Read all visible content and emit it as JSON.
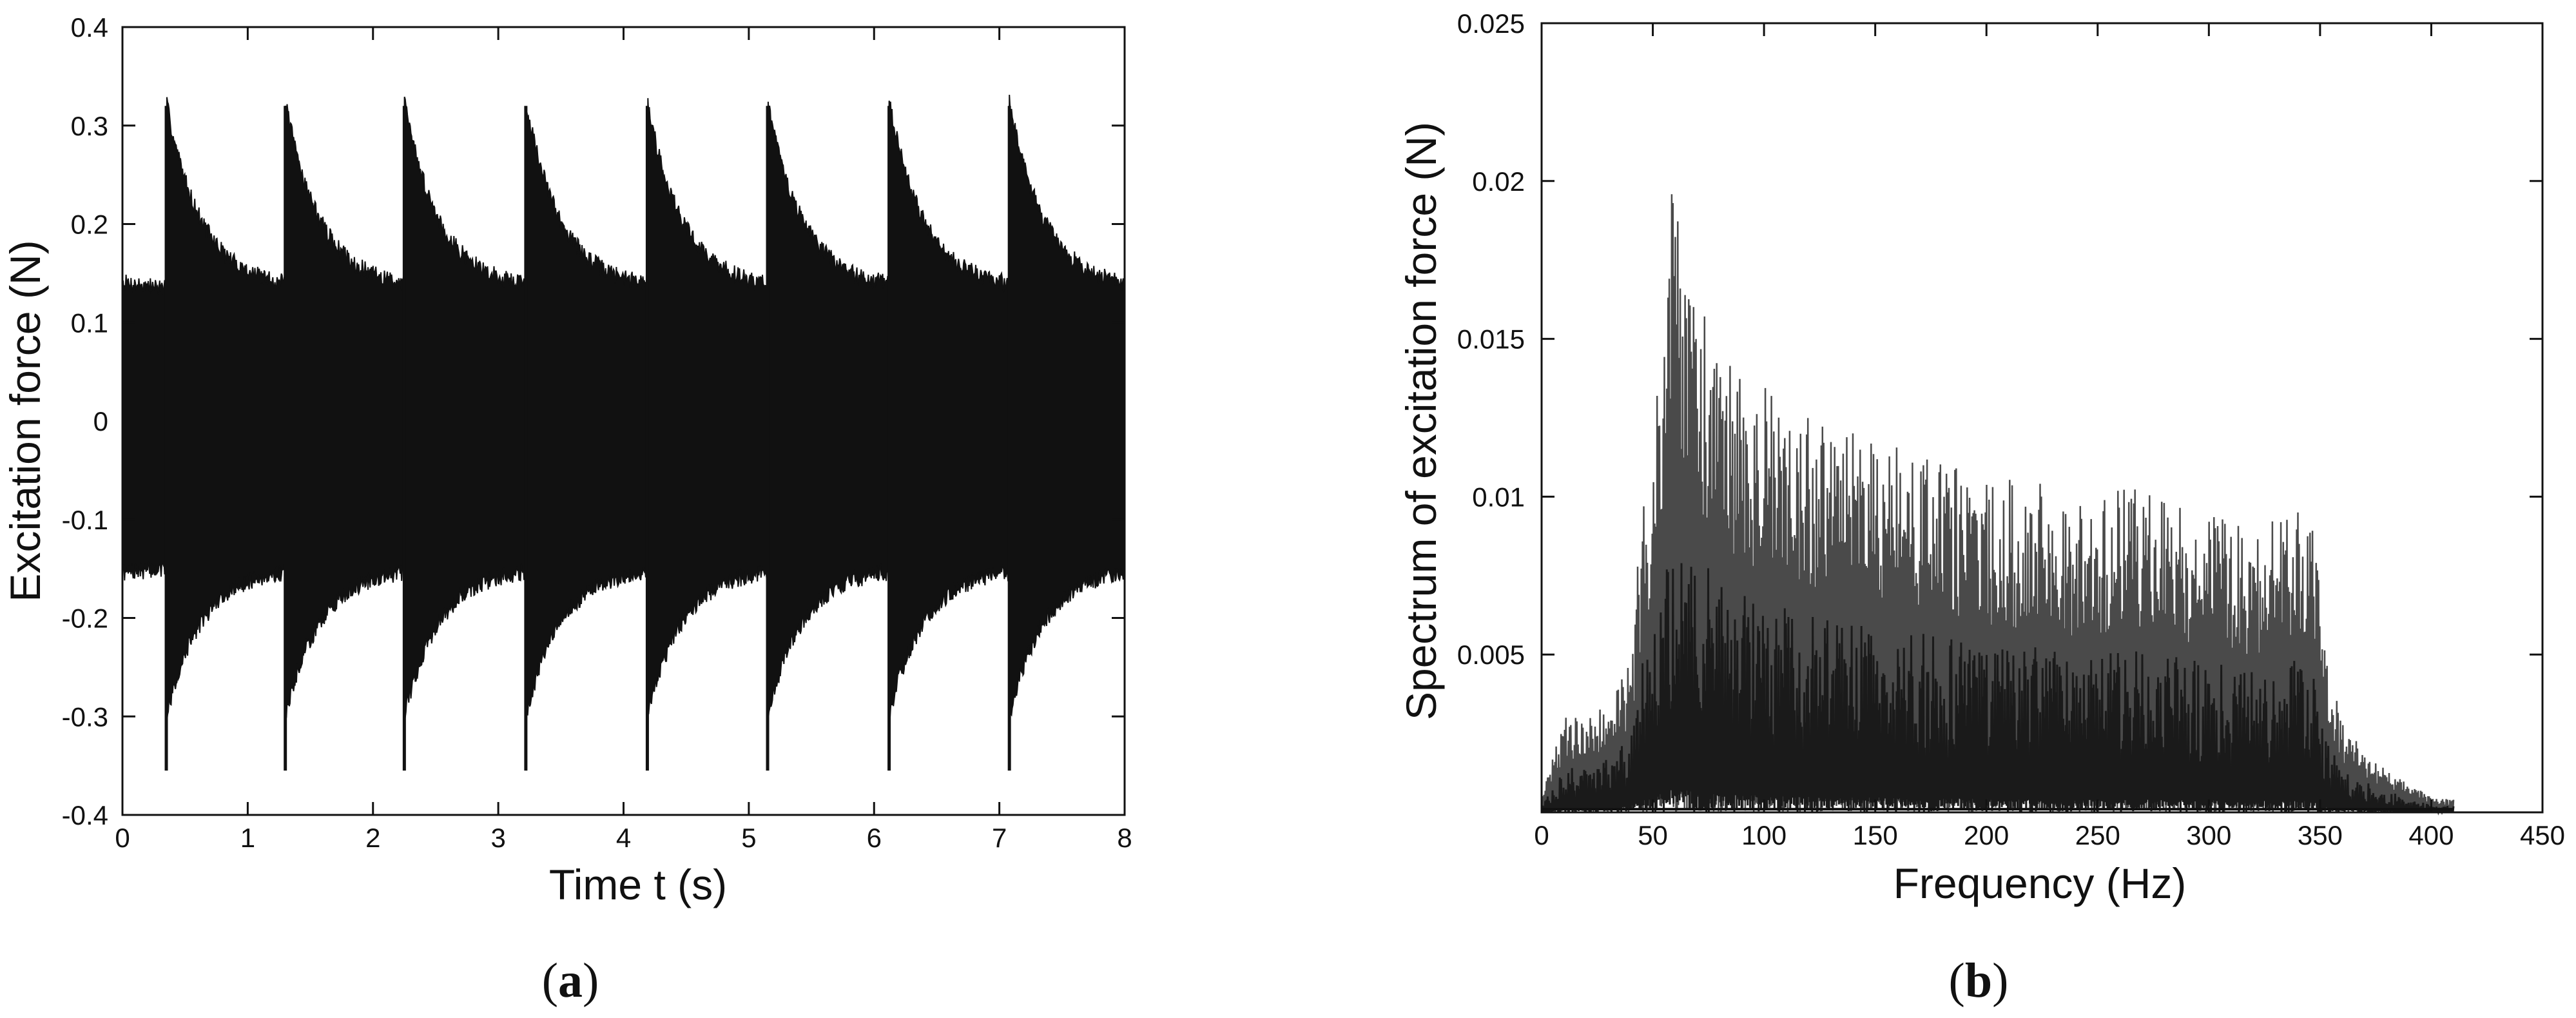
{
  "chart_data": [
    {
      "id": "a",
      "type": "line",
      "panel_label": "a",
      "xlabel": "Time t (s)",
      "ylabel": "Excitation force (N)",
      "xlim": [
        0,
        8
      ],
      "ylim": [
        -0.4,
        0.4
      ],
      "xticks": [
        "0",
        "1",
        "2",
        "3",
        "4",
        "5",
        "6",
        "7",
        "8"
      ],
      "yticks": [
        "-0.4",
        "-0.3",
        "-0.2",
        "-0.1",
        "0",
        "0.1",
        "0.2",
        "0.3",
        "0.4"
      ],
      "grid": false,
      "color": "#111111",
      "impulse_times": [
        0.35,
        1.3,
        2.25,
        3.22,
        4.19,
        5.15,
        6.12,
        7.08
      ],
      "peak_positive": 0.32,
      "peak_negative": -0.355,
      "decay_positive_floor": 0.13,
      "decay_negative_floor": -0.145
    },
    {
      "id": "b",
      "type": "line",
      "panel_label": "b",
      "xlabel": "Frequency (Hz)",
      "ylabel": "Spectrum of excitation force (N)",
      "xlim": [
        0,
        450
      ],
      "ylim": [
        0,
        0.025
      ],
      "xticks": [
        "0",
        "50",
        "100",
        "150",
        "200",
        "250",
        "300",
        "350",
        "400",
        "450"
      ],
      "yticks": [
        "0.005",
        "0.01",
        "0.015",
        "0.02",
        "0.025"
      ],
      "grid": false,
      "color": "#3a3a3a",
      "envelope": [
        [
          0,
          0.0005
        ],
        [
          10,
          0.003
        ],
        [
          20,
          0.0031
        ],
        [
          30,
          0.0034
        ],
        [
          40,
          0.0048
        ],
        [
          45,
          0.0095
        ],
        [
          50,
          0.012
        ],
        [
          55,
          0.017
        ],
        [
          60,
          0.0212
        ],
        [
          65,
          0.0175
        ],
        [
          70,
          0.0165
        ],
        [
          80,
          0.0145
        ],
        [
          100,
          0.0135
        ],
        [
          120,
          0.0125
        ],
        [
          150,
          0.0118
        ],
        [
          180,
          0.0112
        ],
        [
          200,
          0.0105
        ],
        [
          220,
          0.0107
        ],
        [
          240,
          0.0098
        ],
        [
          260,
          0.0104
        ],
        [
          280,
          0.0099
        ],
        [
          300,
          0.0097
        ],
        [
          320,
          0.009
        ],
        [
          340,
          0.0097
        ],
        [
          348,
          0.009
        ],
        [
          352,
          0.0052
        ],
        [
          360,
          0.0028
        ],
        [
          375,
          0.0016
        ],
        [
          390,
          0.0009
        ],
        [
          400,
          0.0005
        ],
        [
          410,
          0.0004
        ]
      ]
    }
  ]
}
